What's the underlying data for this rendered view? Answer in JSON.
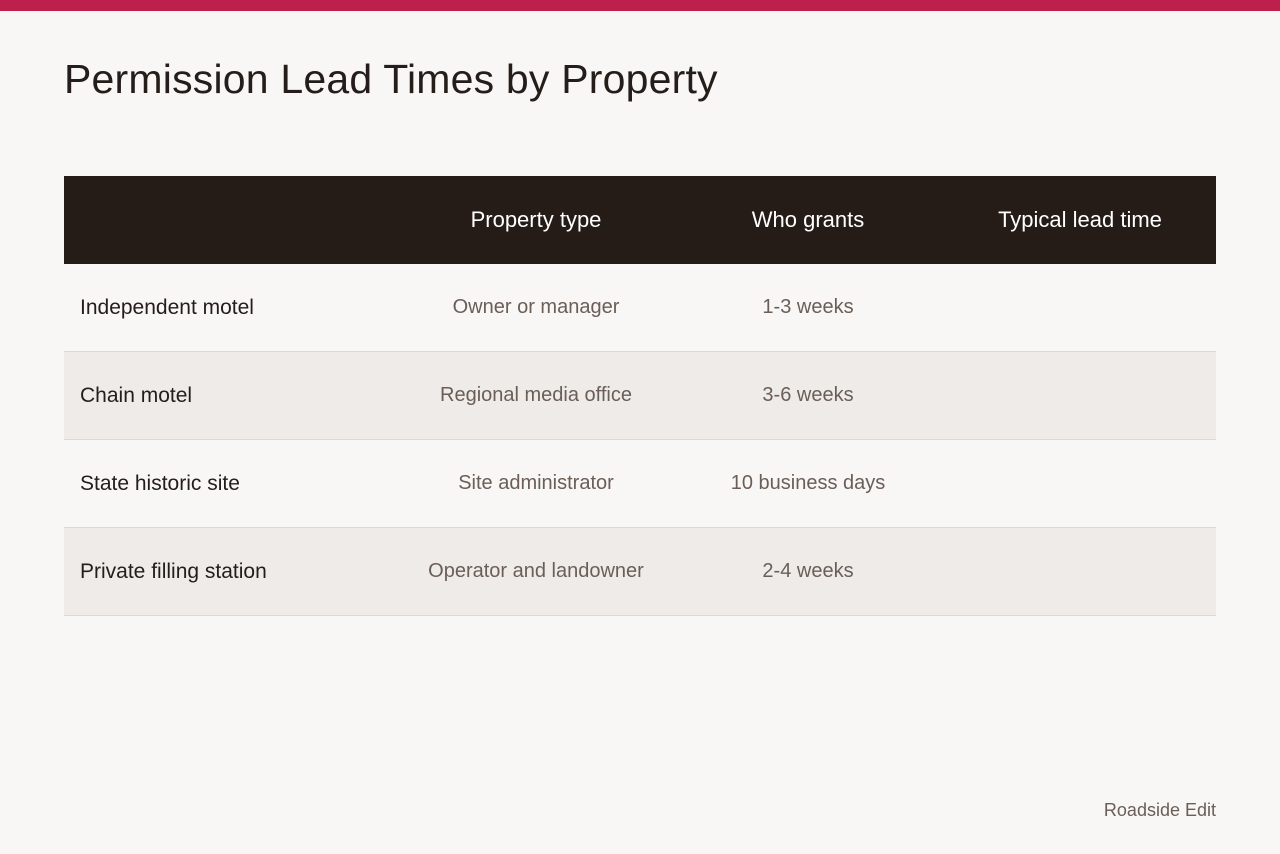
{
  "accent_color": "#be1f4b",
  "header_bg_color": "#251c18",
  "title": "Permission Lead Times by Property",
  "table": {
    "headers": [
      "",
      "Property type",
      "Who grants",
      "Typical lead time"
    ],
    "rows": [
      [
        "Independent motel",
        "Owner or manager",
        "1-3 weeks",
        ""
      ],
      [
        "Chain motel",
        "Regional media office",
        "3-6 weeks",
        ""
      ],
      [
        "State historic site",
        "Site administrator",
        "10 business days",
        ""
      ],
      [
        "Private filling station",
        "Operator and landowner",
        "2-4 weeks",
        ""
      ]
    ]
  },
  "footer": "Roadside Edit"
}
